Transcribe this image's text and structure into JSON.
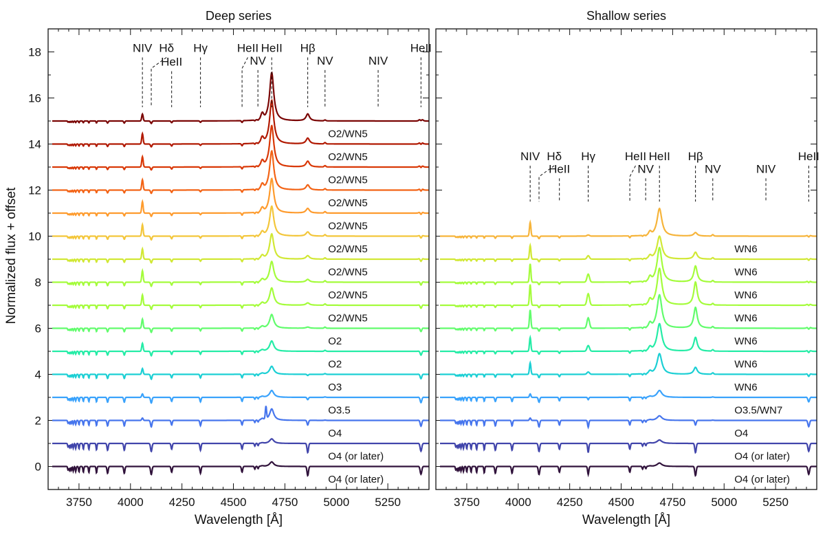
{
  "figure": {
    "ylabel": "Normalized flux + offset",
    "xlabel": "Wavelength [Å]"
  },
  "chart_data": [
    {
      "type": "line",
      "title": "Deep series",
      "xlabel": "Wavelength [Å]",
      "ylabel": "Normalized flux + offset",
      "xlim": [
        3600,
        5450
      ],
      "ylim": [
        -1,
        19
      ],
      "x_ticks": [
        3750,
        4000,
        4250,
        4500,
        4750,
        5000,
        5250
      ],
      "x_tick_labels": [
        "3750",
        "4000",
        "4250",
        "4500",
        "4750",
        "5000",
        "5250"
      ],
      "y_ticks": [
        0,
        2,
        4,
        6,
        8,
        10,
        12,
        14,
        16,
        18
      ],
      "y_tick_labels": [
        "0",
        "2",
        "4",
        "6",
        "8",
        "10",
        "12",
        "14",
        "16",
        "18"
      ],
      "line_marker_level": 15.6,
      "line_ids": [
        {
          "label": "NIV",
          "wavelength": 4058,
          "label_wavelength": 4058,
          "label_y": 18.0,
          "tier": "high"
        },
        {
          "label": "Hδ",
          "wavelength": 4101,
          "label_wavelength": 4175,
          "label_y": 18.0,
          "tier": "high"
        },
        {
          "label": "HeII",
          "wavelength": 4200,
          "label_wavelength": 4200,
          "label_y": 17.4,
          "tier": "low"
        },
        {
          "label": "Hγ",
          "wavelength": 4340,
          "label_wavelength": 4340,
          "label_y": 18.0,
          "tier": "high"
        },
        {
          "label": "HeII",
          "wavelength": 4542,
          "label_wavelength": 4570,
          "label_y": 18.0,
          "tier": "high"
        },
        {
          "label": "NV",
          "wavelength": 4619,
          "label_wavelength": 4619,
          "label_y": 17.45,
          "tier": "low"
        },
        {
          "label": "HeII",
          "wavelength": 4686,
          "label_wavelength": 4686,
          "label_y": 18.0,
          "tier": "high"
        },
        {
          "label": "Hβ",
          "wavelength": 4861,
          "label_wavelength": 4861,
          "label_y": 18.0,
          "tier": "high"
        },
        {
          "label": "NV",
          "wavelength": 4945,
          "label_wavelength": 4945,
          "label_y": 17.45,
          "tier": "low"
        },
        {
          "label": "NIV",
          "wavelength": 5203,
          "label_wavelength": 5203,
          "label_y": 17.45,
          "tier": "low"
        },
        {
          "label": "HeII",
          "wavelength": 5411,
          "label_wavelength": 5411,
          "label_y": 18.0,
          "tier": "high"
        }
      ],
      "series": [
        {
          "name": "O4 (or later)",
          "offset": 0,
          "color": "#30123b",
          "heii4686": 0.2,
          "hbeta": -0.4,
          "niv": 0.0,
          "absorption": 1.0,
          "absorption_feature_4660": 0.0
        },
        {
          "name": "O4 (or later)",
          "offset": 1,
          "color": "#4145ab",
          "heii4686": 0.2,
          "hbeta": -0.4,
          "niv": 0.0,
          "absorption": 1.0,
          "absorption_feature_4660": 0.0
        },
        {
          "name": "O4",
          "offset": 2,
          "color": "#4675ed",
          "heii4686": 0.5,
          "hbeta": -0.2,
          "niv": 0.1,
          "absorption": 0.8,
          "absorption_feature_4660": 0.55
        },
        {
          "name": "O3.5",
          "offset": 3,
          "color": "#39a2fc",
          "heii4686": 0.3,
          "hbeta": -0.1,
          "niv": 0.15,
          "absorption": 0.7,
          "absorption_feature_4660": 0.0
        },
        {
          "name": "O3",
          "offset": 4,
          "color": "#1bcfd4",
          "heii4686": 0.35,
          "hbeta": -0.05,
          "niv": 0.25,
          "absorption": 0.6,
          "absorption_feature_4660": 0.0
        },
        {
          "name": "O2",
          "offset": 5,
          "color": "#24eca6",
          "heii4686": 0.45,
          "hbeta": 0.0,
          "niv": 0.35,
          "absorption": 0.55,
          "absorption_feature_4660": 0.0
        },
        {
          "name": "O2",
          "offset": 6,
          "color": "#61fc6c",
          "heii4686": 0.6,
          "hbeta": 0.05,
          "niv": 0.4,
          "absorption": 0.5,
          "absorption_feature_4660": 0.0
        },
        {
          "name": "O2/WN5",
          "offset": 7,
          "color": "#a4fc3b",
          "heii4686": 0.75,
          "hbeta": 0.1,
          "niv": 0.45,
          "absorption": 0.5,
          "absorption_feature_4660": 0.0
        },
        {
          "name": "O2/WN5",
          "offset": 8,
          "color": "#a4fc3b",
          "heii4686": 0.9,
          "hbeta": 0.12,
          "niv": 0.5,
          "absorption": 0.5,
          "absorption_feature_4660": 0.0
        },
        {
          "name": "O2/WN5",
          "offset": 9,
          "color": "#d1e834",
          "heii4686": 1.1,
          "hbeta": 0.15,
          "niv": 0.45,
          "absorption": 0.45,
          "absorption_feature_4660": 0.0
        },
        {
          "name": "O2/WN5",
          "offset": 10,
          "color": "#f3c63a",
          "heii4686": 1.3,
          "hbeta": 0.18,
          "niv": 0.5,
          "absorption": 0.45,
          "absorption_feature_4660": 0.0
        },
        {
          "name": "O2/WN5",
          "offset": 11,
          "color": "#fe9b2d",
          "heii4686": 1.5,
          "hbeta": 0.2,
          "niv": 0.5,
          "absorption": 0.4,
          "absorption_feature_4660": 0.0
        },
        {
          "name": "O2/WN5",
          "offset": 12,
          "color": "#f36315",
          "heii4686": 1.7,
          "hbeta": 0.22,
          "niv": 0.45,
          "absorption": 0.4,
          "absorption_feature_4660": 0.0
        },
        {
          "name": "O2/WN5",
          "offset": 13,
          "color": "#d93806",
          "heii4686": 1.8,
          "hbeta": 0.25,
          "niv": 0.45,
          "absorption": 0.35,
          "absorption_feature_4660": 0.0
        },
        {
          "name": "O2/WN5",
          "offset": 14,
          "color": "#b11901",
          "heii4686": 1.9,
          "hbeta": 0.25,
          "niv": 0.45,
          "absorption": 0.35,
          "absorption_feature_4660": 0.0
        },
        {
          "name": "O2/WN5",
          "offset": 15,
          "color": "#7a0403",
          "heii4686": 2.1,
          "hbeta": 0.3,
          "niv": 0.3,
          "absorption": 0.3,
          "absorption_feature_4660": 0.0
        }
      ]
    },
    {
      "type": "line",
      "title": "Shallow series",
      "xlabel": "Wavelength [Å]",
      "ylabel": "Normalized flux + offset",
      "xlim": [
        3600,
        5450
      ],
      "ylim": [
        -1,
        19
      ],
      "x_ticks": [
        3750,
        4000,
        4250,
        4500,
        4750,
        5000,
        5250
      ],
      "x_tick_labels": [
        "3750",
        "4000",
        "4250",
        "4500",
        "4750",
        "5000",
        "5250"
      ],
      "y_ticks": [
        0,
        2,
        4,
        6,
        8,
        10,
        12,
        14,
        16,
        18
      ],
      "y_tick_labels": [
        "0",
        "2",
        "4",
        "6",
        "8",
        "10",
        "12",
        "14",
        "16",
        "18"
      ],
      "line_marker_level": 11.5,
      "line_ids": [
        {
          "label": "NIV",
          "wavelength": 4058,
          "label_wavelength": 4058,
          "label_y": 13.3,
          "tier": "high"
        },
        {
          "label": "Hδ",
          "wavelength": 4101,
          "label_wavelength": 4175,
          "label_y": 13.3,
          "tier": "high"
        },
        {
          "label": "HeII",
          "wavelength": 4200,
          "label_wavelength": 4200,
          "label_y": 12.75,
          "tier": "low"
        },
        {
          "label": "Hγ",
          "wavelength": 4340,
          "label_wavelength": 4340,
          "label_y": 13.3,
          "tier": "high"
        },
        {
          "label": "HeII",
          "wavelength": 4542,
          "label_wavelength": 4570,
          "label_y": 13.3,
          "tier": "high"
        },
        {
          "label": "NV",
          "wavelength": 4619,
          "label_wavelength": 4619,
          "label_y": 12.75,
          "tier": "low"
        },
        {
          "label": "HeII",
          "wavelength": 4686,
          "label_wavelength": 4686,
          "label_y": 13.3,
          "tier": "high"
        },
        {
          "label": "Hβ",
          "wavelength": 4861,
          "label_wavelength": 4861,
          "label_y": 13.3,
          "tier": "high"
        },
        {
          "label": "NV",
          "wavelength": 4945,
          "label_wavelength": 4945,
          "label_y": 12.75,
          "tier": "low"
        },
        {
          "label": "NIV",
          "wavelength": 5203,
          "label_wavelength": 5203,
          "label_y": 12.75,
          "tier": "low"
        },
        {
          "label": "HeII",
          "wavelength": 5411,
          "label_wavelength": 5411,
          "label_y": 13.3,
          "tier": "high"
        }
      ],
      "series": [
        {
          "name": "O4 (or later)",
          "offset": 0,
          "color": "#30123b",
          "heii4686": 0.15,
          "hbeta": -0.4,
          "niv": 0.0,
          "absorption": 1.0,
          "hgamma": -0.35
        },
        {
          "name": "O4 (or later)",
          "offset": 1,
          "color": "#4145ab",
          "heii4686": 0.15,
          "hbeta": -0.4,
          "niv": 0.0,
          "absorption": 1.0,
          "hgamma": -0.4
        },
        {
          "name": "O4",
          "offset": 2,
          "color": "#4675ed",
          "heii4686": 0.2,
          "hbeta": -0.2,
          "niv": 0.1,
          "absorption": 0.8,
          "hgamma": -0.3
        },
        {
          "name": "O3.5/WN7",
          "offset": 3,
          "color": "#39a2fc",
          "heii4686": 0.3,
          "hbeta": 0.0,
          "niv": 0.15,
          "absorption": 0.6,
          "hgamma": -0.1
        },
        {
          "name": "WN6",
          "offset": 4,
          "color": "#1bcfd4",
          "heii4686": 0.9,
          "hbeta": 0.3,
          "niv": 0.5,
          "absorption": 0.4,
          "hgamma": 0.1
        },
        {
          "name": "WN6",
          "offset": 5,
          "color": "#24eca6",
          "heii4686": 1.2,
          "hbeta": 0.6,
          "niv": 0.6,
          "absorption": 0.35,
          "hgamma": 0.25
        },
        {
          "name": "WN6",
          "offset": 6,
          "color": "#61fc6c",
          "heii4686": 1.45,
          "hbeta": 0.9,
          "niv": 0.8,
          "absorption": 0.35,
          "hgamma": 0.45
        },
        {
          "name": "WN6",
          "offset": 7,
          "color": "#a4fc3b",
          "heii4686": 1.6,
          "hbeta": 1.0,
          "niv": 0.9,
          "absorption": 0.3,
          "hgamma": 0.5
        },
        {
          "name": "WN6",
          "offset": 8,
          "color": "#a4fc3b",
          "heii4686": 1.5,
          "hbeta": 0.7,
          "niv": 0.8,
          "absorption": 0.3,
          "hgamma": 0.35
        },
        {
          "name": "WN6",
          "offset": 9,
          "color": "#d1e834",
          "heii4686": 1.0,
          "hbeta": 0.3,
          "niv": 0.6,
          "absorption": 0.3,
          "hgamma": 0.15
        },
        {
          "name": "WN6",
          "offset": 10,
          "color": "#f6b43a",
          "heii4686": 1.2,
          "hbeta": 0.15,
          "niv": 0.6,
          "absorption": 0.3,
          "hgamma": 0.05
        }
      ]
    }
  ]
}
